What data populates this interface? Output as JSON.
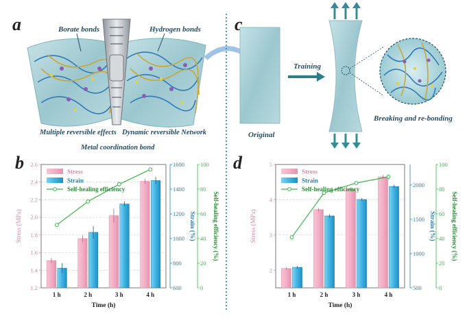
{
  "panels": {
    "a": {
      "letter": "a",
      "labels": {
        "borate": "Borate bonds",
        "hydrogen": "Hydrogen bonds",
        "multiple": "Multiple reversible effects",
        "dynamic": "Dynamic reversible Network",
        "metal": "Metal coordination bond"
      }
    },
    "c": {
      "letter": "c",
      "original": "Original",
      "training": "Training",
      "breaking": "Breaking and re-bonding"
    },
    "b": {
      "letter": "b"
    },
    "d": {
      "letter": "d"
    }
  },
  "colors": {
    "stress": "#f2aec5",
    "strain": "#3fb3e3",
    "efficiency": "#3bb54a",
    "stress_axis": "#d98aa6",
    "strain_axis": "#2d7fa6",
    "eff_axis": "#3bb54a",
    "gel": "#a9cfd6",
    "divider": "#4f9fa8"
  },
  "chart_data": [
    {
      "panel": "b",
      "type": "bar",
      "categories": [
        "1 h",
        "2 h",
        "3 h",
        "4 h"
      ],
      "xlabel": "Time (h)",
      "series": [
        {
          "name": "Stress",
          "axis": "left",
          "values": [
            1.51,
            1.76,
            2.02,
            2.41
          ],
          "errors": [
            0.03,
            0.04,
            0.08,
            0.03
          ]
        },
        {
          "name": "Strain",
          "axis": "right1",
          "values": [
            760,
            1050,
            1280,
            1470
          ],
          "errors": [
            40,
            50,
            20,
            30
          ]
        },
        {
          "name": "Self-healing efficiency",
          "type": "line",
          "axis": "right2",
          "values": [
            51,
            70,
            84,
            96
          ],
          "errors": [
            1.5,
            1.5,
            2,
            1.5
          ]
        }
      ],
      "axes": {
        "left": {
          "label": "Stress (MPa)",
          "min": 1.2,
          "max": 2.6,
          "ticks": [
            "1.2",
            "1.4",
            "1.6",
            "1.8",
            "2.0",
            "2.2",
            "2.4",
            "2.6"
          ]
        },
        "right1": {
          "label": "Strain (%)",
          "min": 600,
          "max": 1600,
          "ticks": [
            "600",
            "800",
            "1000",
            "1200",
            "1400",
            "1600"
          ]
        },
        "right2": {
          "label": "Self-healing efficiency (%)",
          "min": 0,
          "max": 100,
          "ticks": [
            "0",
            "20",
            "40",
            "60",
            "80",
            "100"
          ]
        }
      },
      "legend": [
        "Stress",
        "Strain",
        "Self-healing efficiency"
      ]
    },
    {
      "panel": "d",
      "type": "bar",
      "categories": [
        "1 h",
        "2 h",
        "3 h",
        "4 h"
      ],
      "xlabel": "Time (h)",
      "series": [
        {
          "name": "Stress",
          "axis": "left",
          "values": [
            2.05,
            3.72,
            4.3,
            4.65
          ],
          "errors": [
            0.04,
            0.05,
            0.05,
            0.05
          ]
        },
        {
          "name": "Strain",
          "axis": "right1",
          "values": [
            800,
            1550,
            1790,
            1980
          ],
          "errors": [
            20,
            25,
            20,
            25
          ]
        },
        {
          "name": "Self-healing efficiency",
          "type": "line",
          "axis": "right2",
          "values": [
            41,
            77,
            85,
            90
          ],
          "errors": [
            1.5,
            1.5,
            1,
            2
          ]
        }
      ],
      "axes": {
        "left": {
          "label": "Stress (MPa)",
          "min": 1.5,
          "max": 5,
          "ticks": [
            "2",
            "3",
            "4",
            "5"
          ]
        },
        "right1": {
          "label": "Strain (%)",
          "min": 500,
          "max": 2300,
          "ticks": [
            "500",
            "1000",
            "1500",
            "2000"
          ]
        },
        "right2": {
          "label": "Self-healing efficiency (%)",
          "min": 0,
          "max": 100,
          "ticks": [
            "0",
            "20",
            "40",
            "60",
            "80",
            "100"
          ]
        }
      },
      "legend": [
        "Stress",
        "Strain",
        "Self-healing efficiency"
      ]
    }
  ]
}
